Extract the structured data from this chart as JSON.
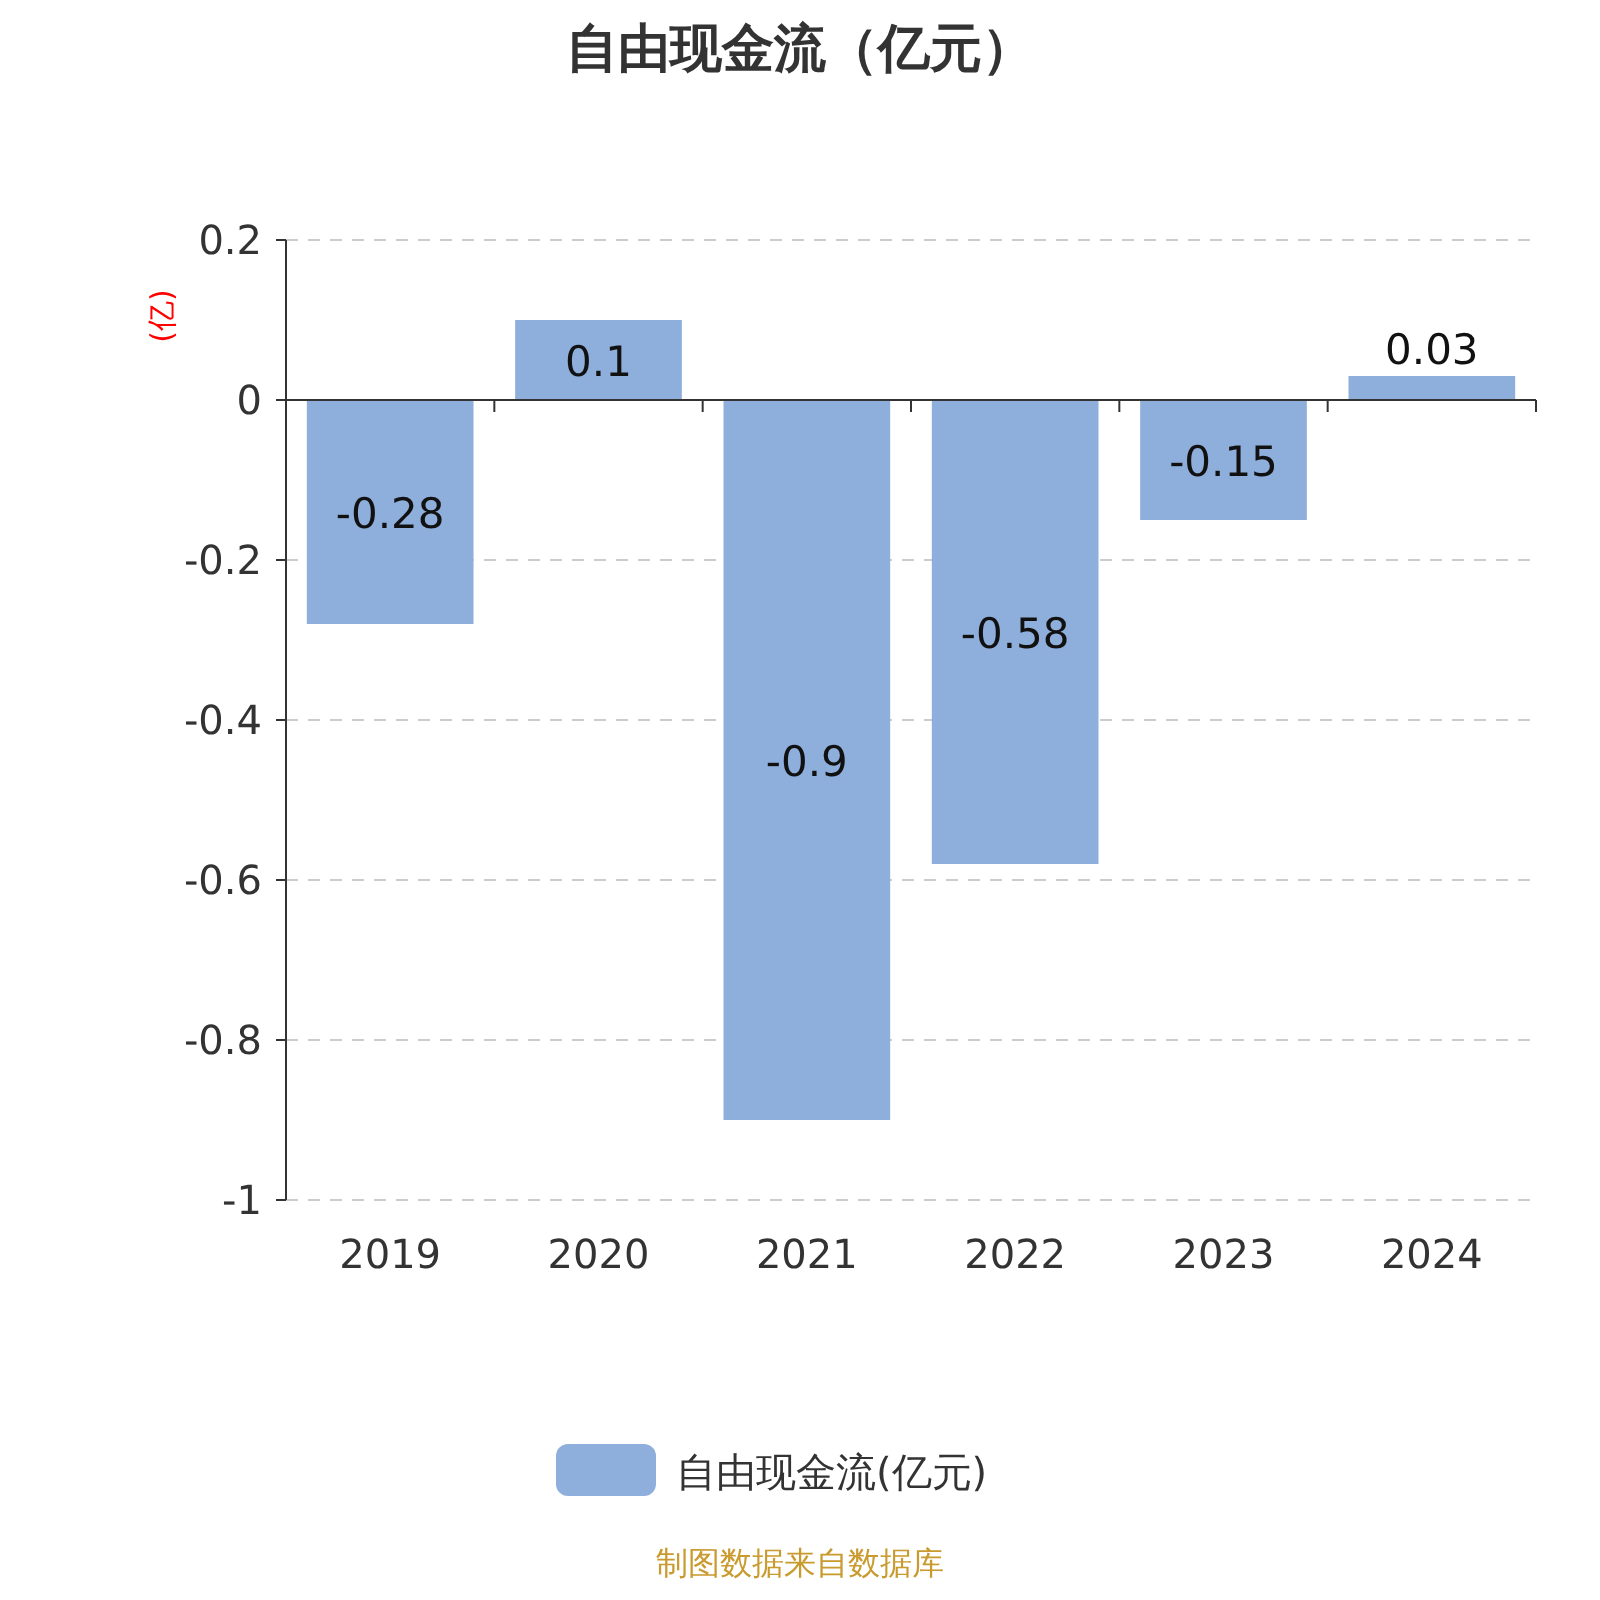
{
  "chart_data": {
    "type": "bar",
    "title": "自由现金流（亿元）",
    "ylabel": "(亿)",
    "categories": [
      "2019",
      "2020",
      "2021",
      "2022",
      "2023",
      "2024"
    ],
    "series": [
      {
        "name": "自由现金流(亿元)",
        "color": "#8eaedb",
        "values": [
          -0.28,
          0.1,
          -0.9,
          -0.58,
          -0.15,
          0.03
        ]
      }
    ],
    "ylim": [
      -1,
      0.2
    ],
    "yticks": [
      -1,
      -0.8,
      -0.6,
      -0.4,
      -0.2,
      0,
      0.2
    ],
    "grid": "y",
    "legend": "bottom",
    "data_labels": true,
    "annotations": [
      "制图数据来自数据库"
    ]
  }
}
